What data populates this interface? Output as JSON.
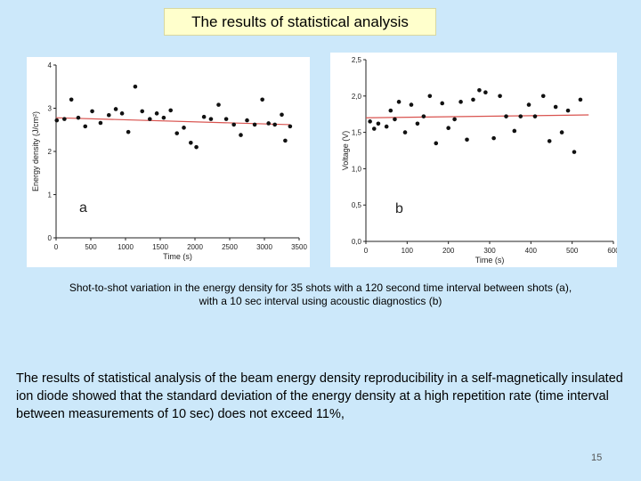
{
  "slide": {
    "title": "The results of statistical analysis",
    "caption_line1": "Shot-to-shot variation in the energy density for 35 shots with a 120 second time interval between shots (a),",
    "caption_line2": "with a 10 sec interval using acoustic diagnostics (b)",
    "body_text": "The results of statistical analysis of the beam energy density reproducibility in a self-magnetically insulated ion diode showed that the standard deviation of the energy density at a high repetition rate (time interval between measurements of 10 sec) does not exceed 11%,",
    "page_number": "15"
  },
  "colors": {
    "background": "#cce8fa",
    "title_bg": "#ffffcc",
    "trend_line": "#d9534f",
    "point": "#111111"
  },
  "chart_data": [
    {
      "type": "scatter",
      "panel_label": "a",
      "xlabel": "Time (s)",
      "ylabel": "Energy density (J/cm²)",
      "xlim": [
        0,
        3500
      ],
      "ylim": [
        0,
        4
      ],
      "xticks": [
        "0",
        "500",
        "1000",
        "1500",
        "2000",
        "2500",
        "3000",
        "3500"
      ],
      "yticks": [
        "0",
        "1",
        "2",
        "3",
        "4"
      ],
      "x": [
        10,
        120,
        220,
        320,
        420,
        520,
        640,
        760,
        860,
        950,
        1040,
        1140,
        1240,
        1350,
        1450,
        1550,
        1650,
        1740,
        1840,
        1940,
        2020,
        2130,
        2230,
        2340,
        2450,
        2560,
        2660,
        2750,
        2860,
        2970,
        3060,
        3150,
        3250,
        3300,
        3370
      ],
      "y": [
        2.72,
        2.75,
        3.2,
        2.78,
        2.58,
        2.93,
        2.66,
        2.84,
        2.98,
        2.88,
        2.45,
        3.5,
        2.93,
        2.75,
        2.88,
        2.78,
        2.95,
        2.42,
        2.55,
        2.2,
        2.1,
        2.8,
        2.75,
        3.08,
        2.75,
        2.62,
        2.38,
        2.72,
        2.62,
        3.2,
        2.65,
        2.62,
        2.85,
        2.25,
        2.58
      ],
      "trend": {
        "x": [
          0,
          3370
        ],
        "y": [
          2.78,
          2.62
        ]
      }
    },
    {
      "type": "scatter",
      "panel_label": "b",
      "xlabel": "Time (s)",
      "ylabel": "Voltage (V)",
      "xlim": [
        0,
        600
      ],
      "ylim": [
        0,
        2.5
      ],
      "xticks": [
        "0",
        "100",
        "200",
        "300",
        "400",
        "500",
        "600"
      ],
      "yticks": [
        "0,0",
        "0,5",
        "1,0",
        "1,5",
        "2,0",
        "2,5"
      ],
      "x": [
        10,
        20,
        30,
        50,
        60,
        70,
        80,
        95,
        110,
        125,
        140,
        155,
        170,
        185,
        200,
        215,
        230,
        245,
        260,
        275,
        290,
        310,
        325,
        340,
        360,
        375,
        395,
        410,
        430,
        445,
        460,
        475,
        490,
        505,
        520
      ],
      "y": [
        1.65,
        1.55,
        1.62,
        1.58,
        1.8,
        1.68,
        1.92,
        1.5,
        1.88,
        1.62,
        1.72,
        2.0,
        1.35,
        1.9,
        1.56,
        1.68,
        1.92,
        1.4,
        1.95,
        2.08,
        2.05,
        1.42,
        2.0,
        1.72,
        1.52,
        1.72,
        1.88,
        1.72,
        2.0,
        1.38,
        1.85,
        1.5,
        1.8,
        1.23,
        1.95
      ],
      "trend": {
        "x": [
          0,
          540
        ],
        "y": [
          1.7,
          1.74
        ]
      }
    }
  ]
}
